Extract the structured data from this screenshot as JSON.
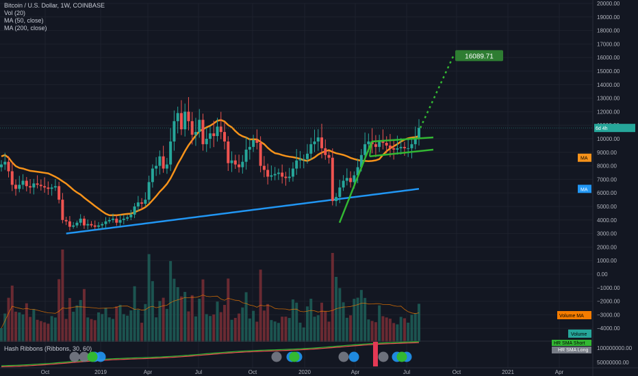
{
  "legend": {
    "symbol": "Bitcoin / U.S. Dollar, 1W, COINBASE",
    "vol": "Vol (20)",
    "ma50": "MA (50, close)",
    "ma200": "MA (200, close)",
    "hash": "Hash Ribbons (Ribbons, 30, 60)"
  },
  "colors": {
    "background": "#131722",
    "grid": "#1e222d",
    "up": "#26a69a",
    "down": "#ef5350",
    "ma50": "#f7931a",
    "ma200": "#2196f3",
    "trendline": "#33b833",
    "target": "#2e7d32",
    "volume_ma": "#f57c00"
  },
  "chart_data": {
    "type": "candlestick",
    "price_axis": {
      "range": [
        -5000,
        20000
      ],
      "ticks": [
        "20000.00",
        "19000.00",
        "18000.00",
        "17000.00",
        "16000.00",
        "15000.00",
        "14000.00",
        "13000.00",
        "12000.00",
        "11000.00",
        "10000.00",
        "9000.00",
        "8000.00",
        "7000.00",
        "6000.00",
        "5000.00",
        "4000.00",
        "3000.00",
        "2000.00",
        "1000.00",
        "0.00",
        "−1000.00",
        "−2000.00",
        "−3000.00",
        "−4000.00"
      ]
    },
    "hash_axis": {
      "ticks": [
        "100000000.00",
        "50000000.00"
      ]
    },
    "time_axis": {
      "ticks": [
        "Oct",
        "2019",
        "Apr",
        "Jul",
        "Oct",
        "2020",
        "Apr",
        "Jul",
        "Oct",
        "2021",
        "Apr"
      ]
    },
    "labels": {
      "target": "16089.71",
      "countdown": "6d 4h",
      "ma_tag": "MA",
      "ma200_tag": "MA",
      "volume_ma_tag": "Volume MA",
      "volume_tag": "Volume",
      "hr_short": "HR SMA Short",
      "hr_long": "HR SMA Long"
    },
    "last_price": 10800,
    "target_price": 16089.71,
    "ma50_last": 8600,
    "ma200_last": 6300,
    "volume_ma_last": -2800,
    "weekly_close": [
      8100,
      8300,
      7600,
      6600,
      6300,
      6600,
      6900,
      6500,
      6400,
      6700,
      6600,
      6500,
      6400,
      6300,
      6400,
      6500,
      5500,
      4000,
      3900,
      3500,
      3600,
      3800,
      4100,
      3600,
      3700,
      3600,
      3500,
      3600,
      3700,
      3900,
      4000,
      4100,
      3800,
      4000,
      4100,
      4200,
      4400,
      5000,
      5300,
      5200,
      5500,
      6800,
      7800,
      8000,
      8700,
      7800,
      8100,
      9800,
      11300,
      11900,
      10700,
      12000,
      11300,
      10300,
      10500,
      11400,
      9600,
      10000,
      10400,
      10200,
      10900,
      10500,
      9800,
      8200,
      8400,
      8100,
      7900,
      8300,
      9200,
      9400,
      9900,
      9700,
      8000,
      7700,
      7200,
      7300,
      7400,
      7500,
      7200,
      7100,
      7200,
      7800,
      8400,
      8500,
      8500,
      8900,
      9600,
      9800,
      10100,
      9300,
      8800,
      8600,
      5400,
      5700,
      6400,
      6900,
      7100,
      6800,
      7300,
      7900,
      8800,
      9600,
      9800,
      9600,
      9400,
      9900,
      9700,
      9500,
      9300,
      9200,
      9300,
      9400,
      9300,
      9300,
      9600,
      10000,
      10800
    ]
  }
}
